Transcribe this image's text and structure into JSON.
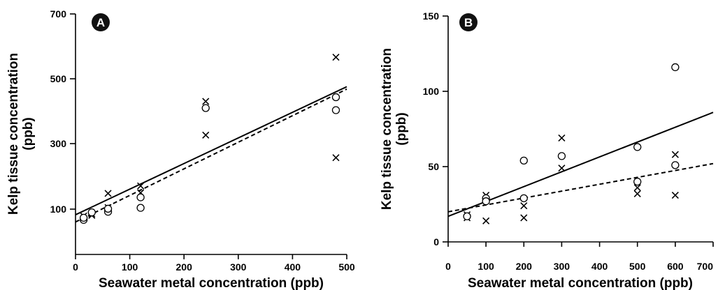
{
  "chart_data": [
    {
      "type": "scatter",
      "panel_label": "A",
      "xlabel": "Seawater metal concentration (ppb)",
      "ylabel": [
        "Kelp tissue concentration",
        "(ppb)"
      ],
      "xlim": [
        0,
        500
      ],
      "ylim": [
        0,
        700
      ],
      "xticks": [
        "0",
        "100",
        "200",
        "300",
        "400",
        "500"
      ],
      "yticks": [
        "100",
        "300",
        "500",
        "700"
      ],
      "series": [
        {
          "marker": "x",
          "points": [
            {
              "x": 15,
              "y": 28
            },
            {
              "x": 30,
              "y": 35
            },
            {
              "x": 30,
              "y": 30
            },
            {
              "x": 60,
              "y": 103
            },
            {
              "x": 60,
              "y": 56
            },
            {
              "x": 120,
              "y": 128
            },
            {
              "x": 120,
              "y": 105
            },
            {
              "x": 240,
              "y": 409
            },
            {
              "x": 240,
              "y": 297
            },
            {
              "x": 480,
              "y": 556
            },
            {
              "x": 480,
              "y": 222
            }
          ],
          "fit": {
            "style": "solid",
            "x": [
              0,
              500
            ],
            "y": [
              32,
              458
            ]
          }
        },
        {
          "marker": "o",
          "points": [
            {
              "x": 15,
              "y": 15
            },
            {
              "x": 15,
              "y": 22
            },
            {
              "x": 30,
              "y": 40
            },
            {
              "x": 60,
              "y": 42
            },
            {
              "x": 60,
              "y": 52
            },
            {
              "x": 120,
              "y": 90
            },
            {
              "x": 120,
              "y": 55
            },
            {
              "x": 240,
              "y": 387
            },
            {
              "x": 480,
              "y": 423
            },
            {
              "x": 480,
              "y": 380
            }
          ],
          "fit": {
            "style": "dashed",
            "x": [
              0,
              500
            ],
            "y": [
              8,
              450
            ]
          }
        }
      ]
    },
    {
      "type": "scatter",
      "panel_label": "B",
      "xlabel": "Seawater metal concentration (ppb)",
      "ylabel": [
        "Kelp tissue concentration",
        "(ppb)"
      ],
      "xlim": [
        0,
        700
      ],
      "ylim": [
        0,
        150
      ],
      "xticks": [
        "0",
        "100",
        "200",
        "300",
        "400",
        "500",
        "600",
        "700"
      ],
      "yticks": [
        "0",
        "50",
        "100",
        "150"
      ],
      "series": [
        {
          "marker": "x",
          "points": [
            {
              "x": 50,
              "y": 18
            },
            {
              "x": 50,
              "y": 16
            },
            {
              "x": 100,
              "y": 31
            },
            {
              "x": 100,
              "y": 14
            },
            {
              "x": 200,
              "y": 24
            },
            {
              "x": 200,
              "y": 16
            },
            {
              "x": 300,
              "y": 69
            },
            {
              "x": 300,
              "y": 49
            },
            {
              "x": 500,
              "y": 36
            },
            {
              "x": 500,
              "y": 32
            },
            {
              "x": 600,
              "y": 58
            },
            {
              "x": 600,
              "y": 31
            }
          ],
          "fit": {
            "style": "solid",
            "x": [
              0,
              700
            ],
            "y": [
              17,
              86
            ]
          }
        },
        {
          "marker": "o",
          "points": [
            {
              "x": 50,
              "y": 17
            },
            {
              "x": 100,
              "y": 29
            },
            {
              "x": 100,
              "y": 27
            },
            {
              "x": 200,
              "y": 54
            },
            {
              "x": 200,
              "y": 29
            },
            {
              "x": 300,
              "y": 57
            },
            {
              "x": 500,
              "y": 63
            },
            {
              "x": 500,
              "y": 40
            },
            {
              "x": 600,
              "y": 116
            },
            {
              "x": 600,
              "y": 51
            }
          ],
          "fit": {
            "style": "dashed",
            "x": [
              0,
              700
            ],
            "y": [
              20,
              52
            ]
          }
        }
      ]
    }
  ]
}
